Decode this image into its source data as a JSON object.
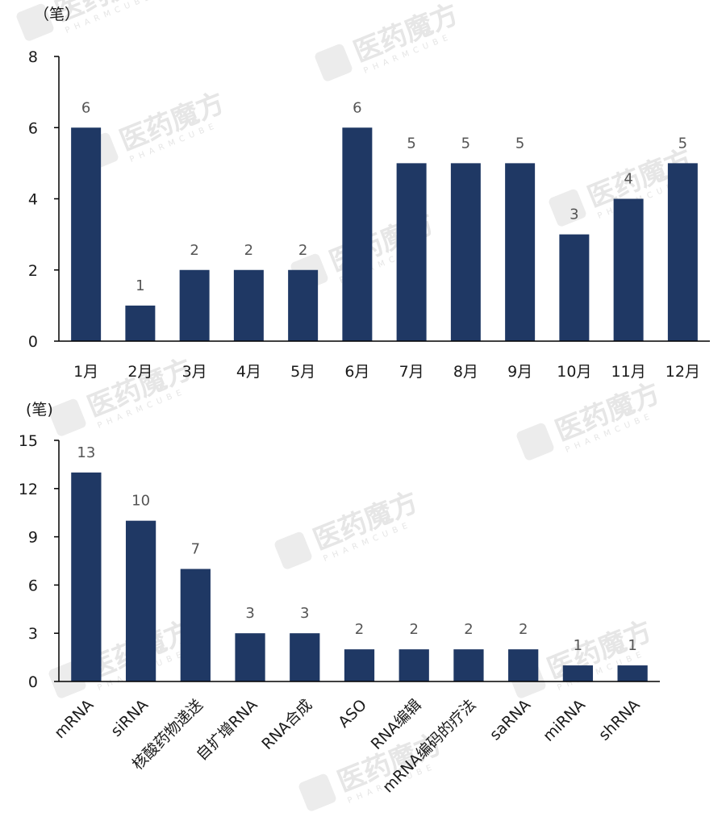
{
  "watermark": {
    "text": "医药魔方",
    "sub": "PHARMCUBE"
  },
  "chart_data": [
    {
      "type": "bar",
      "ylabel": "（笔）",
      "ylim": [
        0,
        8
      ],
      "yticks": [
        0,
        2,
        4,
        6,
        8
      ],
      "categories": [
        "1月",
        "2月",
        "3月",
        "4月",
        "5月",
        "6月",
        "7月",
        "8月",
        "9月",
        "10月",
        "11月",
        "12月"
      ],
      "values": [
        6,
        1,
        2,
        2,
        2,
        6,
        5,
        5,
        5,
        3,
        4,
        5
      ],
      "bar_color": "#1f3864",
      "grid": false,
      "data_labels": true
    },
    {
      "type": "bar",
      "ylabel": "(笔)",
      "ylim": [
        0,
        15
      ],
      "yticks": [
        0,
        3,
        6,
        9,
        12,
        15
      ],
      "categories": [
        "mRNA",
        "siRNA",
        "核酸药物递送",
        "自扩增RNA",
        "RNA合成",
        "ASO",
        "RNA编辑",
        "mRNA编码的疗法",
        "saRNA",
        "miRNA",
        "shRNA"
      ],
      "values": [
        13,
        10,
        7,
        3,
        3,
        2,
        2,
        2,
        2,
        1,
        1
      ],
      "bar_color": "#1f3864",
      "grid": false,
      "data_labels": true
    }
  ]
}
